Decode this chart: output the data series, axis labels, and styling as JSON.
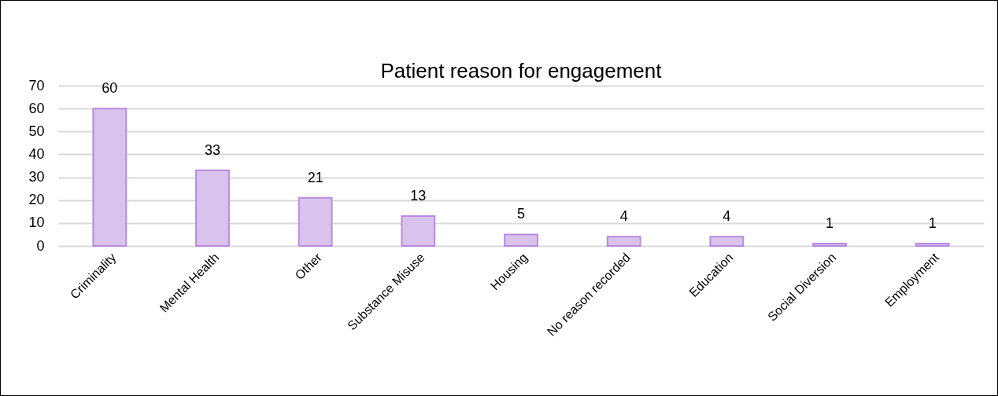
{
  "chart_data": {
    "type": "bar",
    "title": "Patient reason for engagement",
    "categories": [
      "Criminality",
      "Mental Health",
      "Other",
      "Substance Misuse",
      "Housing",
      "No reason recorded",
      "Education",
      "Social Diversion",
      "Employment"
    ],
    "values": [
      60,
      33,
      21,
      13,
      5,
      4,
      4,
      1,
      1
    ],
    "color": "#d9c3ec",
    "ylim": [
      0,
      70
    ],
    "yticks": [
      0,
      10,
      20,
      30,
      40,
      50,
      60,
      70
    ],
    "grid": true,
    "data_labels": true
  }
}
